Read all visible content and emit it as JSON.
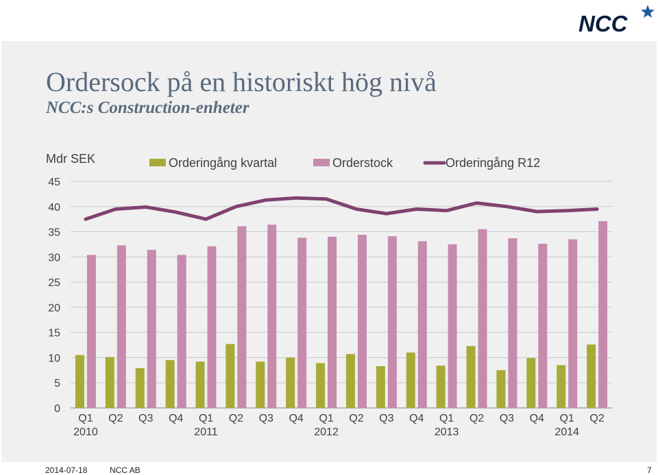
{
  "slide": {
    "title": "Ordersock på en historiskt hög nivå",
    "subtitle": "NCC:s Construction-enheter",
    "footer_date": "2014-07-18",
    "footer_company": "NCC AB",
    "page_number": "7"
  },
  "logo": {
    "text": "NCC",
    "color": "#0a1e3c"
  },
  "colors": {
    "kvartal": "#a8aa37",
    "orderstock": "#c68aad",
    "r12": "#804170",
    "panel": "#f0f0f0"
  },
  "chart_data": {
    "type": "bar",
    "unit_label": "Mdr SEK",
    "categories": [
      "Q1",
      "Q2",
      "Q3",
      "Q4",
      "Q1",
      "Q2",
      "Q3",
      "Q4",
      "Q1",
      "Q2",
      "Q3",
      "Q4",
      "Q1",
      "Q2",
      "Q3",
      "Q4",
      "Q1",
      "Q2"
    ],
    "years": [
      {
        "label": "2010",
        "index": 0
      },
      {
        "label": "2011",
        "index": 4
      },
      {
        "label": "2012",
        "index": 8
      },
      {
        "label": "2013",
        "index": 12
      },
      {
        "label": "2014",
        "index": 16
      }
    ],
    "series": [
      {
        "name": "Orderingång kvartal",
        "type": "bar",
        "values": [
          10.5,
          10.1,
          7.9,
          9.5,
          9.2,
          12.7,
          9.2,
          10.0,
          8.9,
          10.7,
          8.3,
          11.0,
          8.4,
          12.3,
          7.5,
          9.9,
          8.5,
          12.6
        ]
      },
      {
        "name": "Orderstock",
        "type": "bar",
        "values": [
          30.4,
          32.3,
          31.4,
          30.4,
          32.1,
          36.1,
          36.4,
          33.8,
          34.0,
          34.4,
          34.1,
          33.1,
          32.5,
          35.5,
          33.7,
          32.6,
          33.5,
          37.1
        ]
      },
      {
        "name": "Orderingång R12",
        "type": "line",
        "values": [
          37.5,
          39.5,
          39.9,
          38.9,
          37.5,
          40.0,
          41.3,
          41.7,
          41.5,
          39.5,
          38.6,
          39.5,
          39.2,
          40.7,
          40.0,
          39.0,
          39.2,
          39.5
        ]
      }
    ],
    "ylim": [
      0,
      45
    ],
    "yticks": [
      0,
      5,
      10,
      15,
      20,
      25,
      30,
      35,
      40,
      45
    ],
    "grid": true,
    "legend_position": "top"
  }
}
